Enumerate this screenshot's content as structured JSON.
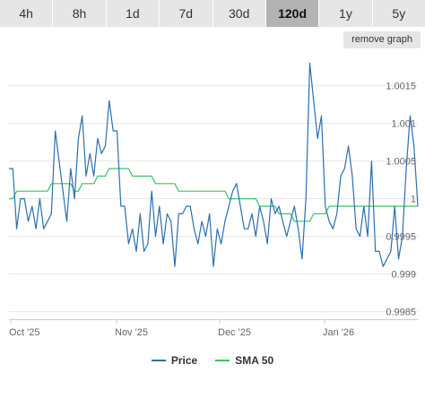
{
  "tabs": [
    {
      "label": "4h",
      "active": false
    },
    {
      "label": "8h",
      "active": false
    },
    {
      "label": "1d",
      "active": false
    },
    {
      "label": "7d",
      "active": false
    },
    {
      "label": "30d",
      "active": false
    },
    {
      "label": "120d",
      "active": true
    },
    {
      "label": "1y",
      "active": false
    },
    {
      "label": "5y",
      "active": false
    }
  ],
  "remove_graph_label": "remove graph",
  "colors": {
    "price": "#2c6fb0",
    "sma": "#3cc26b",
    "grid": "#e6e6e6",
    "axis": "#cccccc",
    "text": "#666666"
  },
  "chart_data": {
    "type": "line",
    "x_ticks": [
      "Oct '25",
      "Nov '25",
      "Dec '25",
      "Jan '26"
    ],
    "y_ticks": [
      "0.9985",
      "0.999",
      "0.9995",
      "1",
      "1.0005",
      "1.001",
      "1.0015"
    ],
    "ylim": [
      0.9984,
      1.0019
    ],
    "grid": true,
    "legend_position": "bottom-center",
    "series": [
      {
        "name": "Price",
        "values": [
          1.0004,
          1.0004,
          0.9996,
          1.0,
          1.0,
          0.9997,
          0.9999,
          0.9996,
          1.0,
          0.9996,
          0.9997,
          0.9998,
          1.0009,
          1.0005,
          1.0001,
          0.9997,
          1.0004,
          1.0,
          1.0008,
          1.0011,
          1.0003,
          1.0006,
          1.0003,
          1.0008,
          1.0006,
          1.0007,
          1.0013,
          1.0009,
          1.0009,
          0.9999,
          0.9999,
          0.9994,
          0.9996,
          0.9993,
          0.9998,
          0.9993,
          0.9994,
          1.0001,
          0.9995,
          0.9999,
          0.9994,
          0.9998,
          0.9997,
          0.9991,
          0.9998,
          0.9998,
          0.9999,
          0.9999,
          0.9996,
          0.9994,
          0.9997,
          0.9995,
          0.9998,
          0.9991,
          0.9996,
          0.9994,
          0.9997,
          0.9999,
          1.0001,
          1.0002,
          0.9999,
          0.9996,
          0.9996,
          0.9998,
          0.9995,
          0.9999,
          0.9997,
          0.9994,
          1.0,
          0.9998,
          0.9999,
          0.9997,
          0.9995,
          0.9997,
          0.9999,
          0.9996,
          0.9992,
          1.0,
          1.0018,
          1.0013,
          1.0008,
          1.0011,
          0.9999,
          0.9997,
          0.9996,
          0.9998,
          1.0003,
          1.0004,
          1.0007,
          1.0003,
          0.9996,
          0.9995,
          0.9999,
          0.9995,
          1.0005,
          0.9993,
          0.9993,
          0.9991,
          0.9992,
          0.9993,
          0.9999,
          0.9992,
          0.9995,
          1.0004,
          1.0011,
          1.0007,
          0.9999
        ]
      },
      {
        "name": "SMA 50",
        "values": [
          1.0,
          1.0,
          1.0001,
          1.0001,
          1.0001,
          1.0001,
          1.0001,
          1.0001,
          1.0001,
          1.0001,
          1.0001,
          1.0002,
          1.0002,
          1.0002,
          1.0002,
          1.0002,
          1.0002,
          1.0001,
          1.0001,
          1.0002,
          1.0002,
          1.0002,
          1.0002,
          1.0003,
          1.0003,
          1.0003,
          1.0004,
          1.0004,
          1.0004,
          1.0004,
          1.0004,
          1.0004,
          1.0003,
          1.0003,
          1.0003,
          1.0003,
          1.0003,
          1.0003,
          1.0002,
          1.0002,
          1.0002,
          1.0002,
          1.0002,
          1.0002,
          1.0001,
          1.0001,
          1.0001,
          1.0001,
          1.0001,
          1.0001,
          1.0001,
          1.0001,
          1.0001,
          1.0001,
          1.0001,
          1.0001,
          1.0001,
          1.0,
          1.0,
          1.0,
          1.0,
          1.0,
          1.0,
          1.0,
          1.0,
          0.9999,
          0.9999,
          0.9999,
          0.9999,
          0.9999,
          0.9998,
          0.9998,
          0.9998,
          0.9998,
          0.9997,
          0.9997,
          0.9997,
          0.9997,
          0.9997,
          0.9998,
          0.9998,
          0.9998,
          0.9998,
          0.9999,
          0.9999,
          0.9999,
          0.9999,
          0.9999,
          0.9999,
          0.9999,
          0.9999,
          0.9999,
          0.9999,
          0.9999,
          0.9999,
          0.9999,
          0.9999,
          0.9999,
          0.9999,
          0.9999,
          0.9999,
          0.9999,
          0.9999,
          0.9999,
          0.9999,
          0.9999,
          0.9999
        ]
      }
    ]
  }
}
